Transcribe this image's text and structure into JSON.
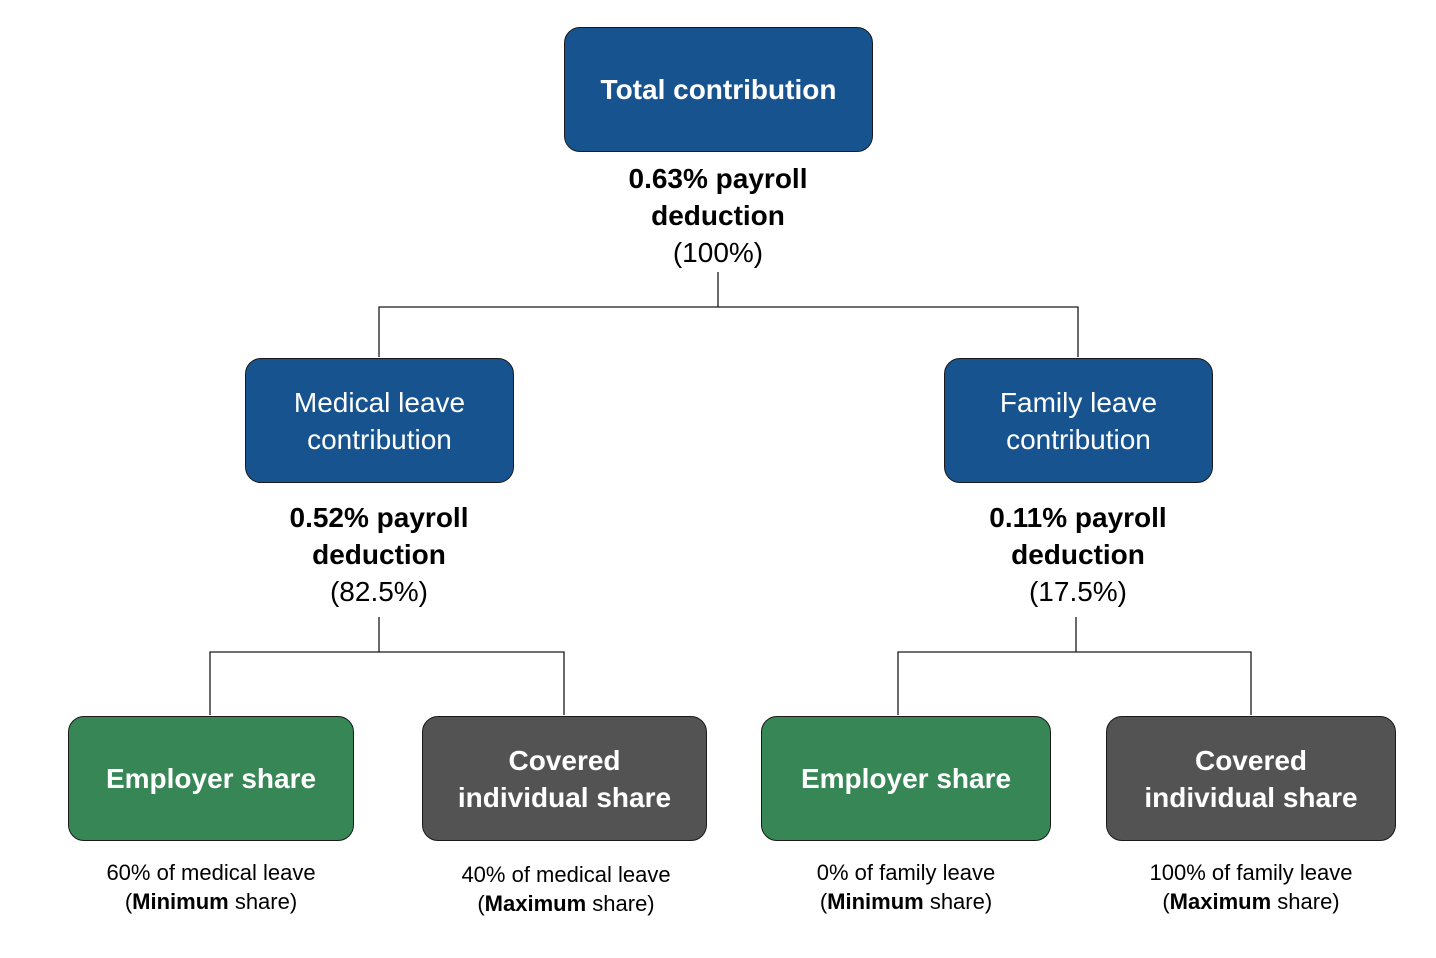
{
  "root": {
    "title": "Total contribution",
    "deduction": "0.63% payroll deduction",
    "percent": "(100%)"
  },
  "medical": {
    "title": "Medical leave contribution",
    "deduction": "0.52% payroll deduction",
    "percent": "(82.5%)",
    "employer": {
      "title": "Employer share",
      "note_line1": "60% of medical leave",
      "note_open": "(",
      "note_bold": "Minimum",
      "note_rest": " share)"
    },
    "individual": {
      "title": "Covered individual share",
      "note_line1": "40% of medical leave",
      "note_open": "(",
      "note_bold": "Maximum",
      "note_rest": " share)"
    }
  },
  "family": {
    "title": "Family leave contribution",
    "deduction": "0.11% payroll deduction",
    "percent": "(17.5%)",
    "employer": {
      "title": "Employer share",
      "note_line1": "0% of family leave",
      "note_open": "(",
      "note_bold": "Minimum",
      "note_rest": " share)"
    },
    "individual": {
      "title": "Covered individual share",
      "note_line1": "100% of family leave",
      "note_open": "(",
      "note_bold": "Maximum",
      "note_rest": " share)"
    }
  },
  "colors": {
    "blue_box": "#17548f",
    "green_box": "#378656",
    "grey_box": "#535353",
    "connector": "#1a1a1a"
  }
}
